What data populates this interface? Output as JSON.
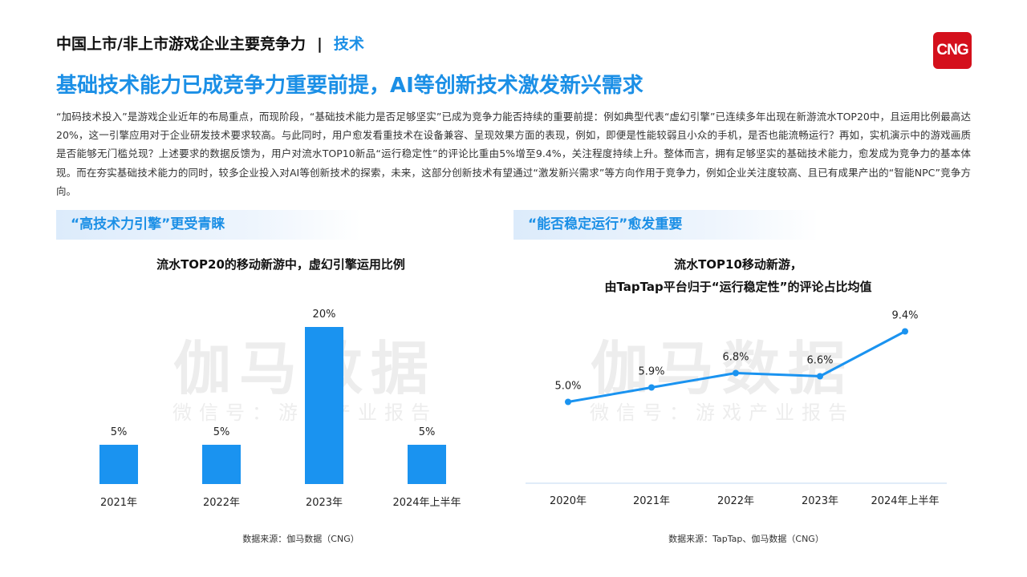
{
  "header": {
    "title": "中国上市/非上市游戏企业主要竞争力",
    "separator": "|",
    "tag": "技术"
  },
  "logo": {
    "text": "CNG"
  },
  "headline": "基础技术能力已成竞争力重要前提，AI等创新技术激发新兴需求",
  "paragraph": "“加码技术投入”是游戏企业近年的布局重点，而现阶段，“基础技术能力是否足够坚实”已成为竞争力能否持续的重要前提：例如典型代表“虚幻引擎”已连续多年出现在新游流水TOP20中，且运用比例最高达20%，这一引擎应用对于企业研发技术要求较高。与此同时，用户愈发看重技术在设备兼容、呈现效果方面的表现，例如，即便是性能较弱且小众的手机，是否也能流畅运行？再如，实机演示中的游戏画质是否能够无门槛兑现？上述要求的数据反馈为，用户对流水TOP10新品“运行稳定性”的评论比重由5%增至9.4%，关注程度持续上升。整体而言，拥有足够坚实的基础技术能力，愈发成为竞争力的基本体现。而在夯实基础技术能力的同时，较多企业投入对AI等创新技术的探索，未来，这部分创新技术有望通过“激发新兴需求”等方向作用于竞争力，例如企业关注度较高、且已有成果产出的“智能NPC”竞争方向。",
  "left_section": {
    "title": "“高技术力引擎”更受青睐"
  },
  "right_section": {
    "title": "“能否稳定运行”愈发重要"
  },
  "watermark": {
    "main": "伽马数据",
    "sub": "微信号：游戏产业报告"
  },
  "colors": {
    "accent": "#1b8fe6",
    "bar": "#1a93f0",
    "line": "#1a93f0",
    "logo_bg": "#d4101c"
  },
  "chart_data": [
    {
      "type": "bar",
      "title": "流水TOP20的移动新游中，虚幻引擎运用比例",
      "categories": [
        "2021年",
        "2022年",
        "2023年",
        "2024年上半年"
      ],
      "values": [
        5,
        5,
        20,
        5
      ],
      "value_labels": [
        "5%",
        "5%",
        "20%",
        "5%"
      ],
      "ylim": [
        0,
        20
      ],
      "grid": false,
      "source": "数据来源：伽马数据（CNG）"
    },
    {
      "type": "line",
      "title_lines": [
        "流水TOP10移动新游，",
        "由TapTap平台归于“运行稳定性”的评论占比均值"
      ],
      "categories": [
        "2020年",
        "2021年",
        "2022年",
        "2023年",
        "2024年上半年"
      ],
      "values": [
        5.0,
        5.9,
        6.8,
        6.6,
        9.4
      ],
      "value_labels": [
        "5.0%",
        "5.9%",
        "6.8%",
        "6.6%",
        "9.4%"
      ],
      "ylim": [
        0,
        9.4
      ],
      "grid": false,
      "source": "数据来源：TapTap、伽马数据（CNG）"
    }
  ]
}
